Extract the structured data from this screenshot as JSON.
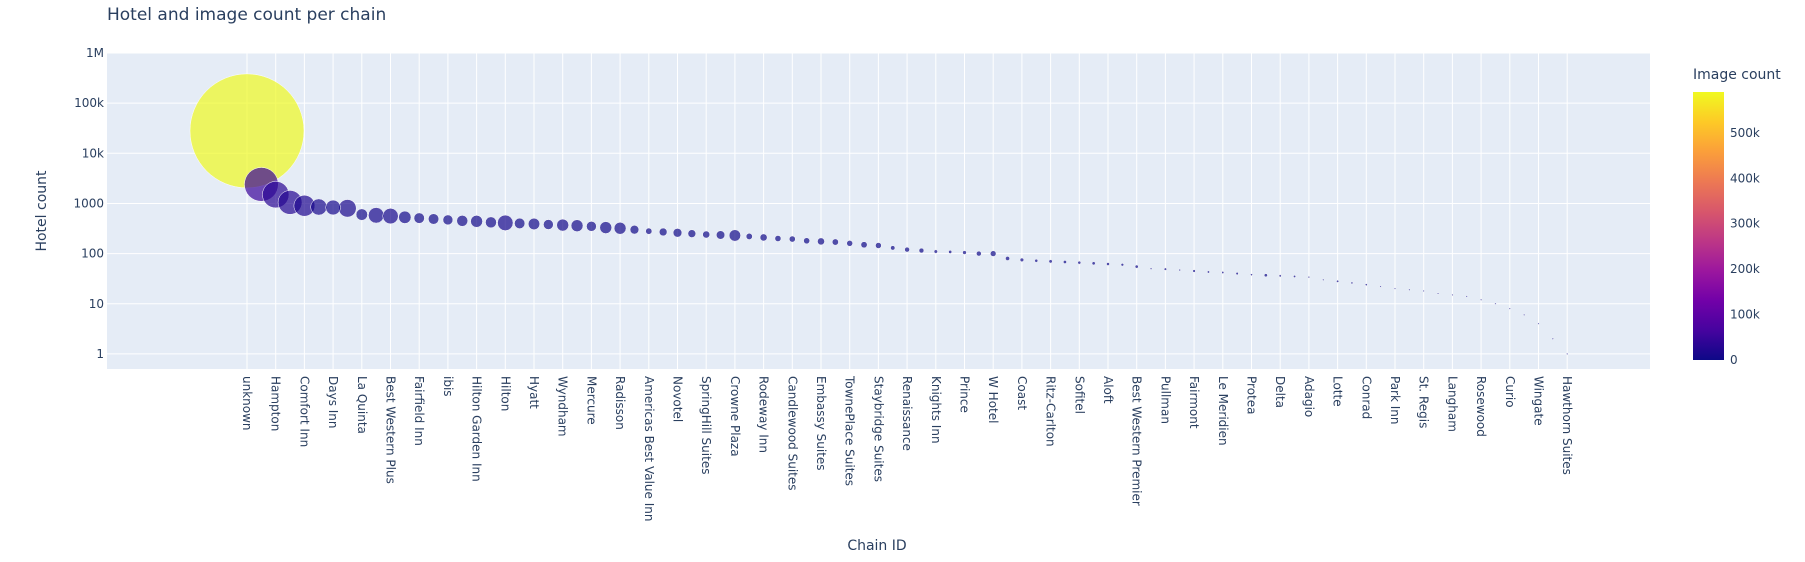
{
  "chart_data": {
    "type": "scatter",
    "title": "Hotel and image count per chain",
    "xlabel": "Chain ID",
    "ylabel": "Hotel count",
    "y_scale": "log",
    "ylim": [
      0.5,
      1000000
    ],
    "y_ticks": [
      {
        "value": 1,
        "label": "1"
      },
      {
        "value": 10,
        "label": "10"
      },
      {
        "value": 100,
        "label": "100"
      },
      {
        "value": 1000,
        "label": "1000"
      },
      {
        "value": 10000,
        "label": "10k"
      },
      {
        "value": 100000,
        "label": "100k"
      },
      {
        "value": 1000000,
        "label": "1M"
      }
    ],
    "size_by": "Image count",
    "color_by": "Image count",
    "colorbar": {
      "title": "Image count",
      "ticks": [
        {
          "value": 0,
          "label": "0"
        },
        {
          "value": 100000,
          "label": "100k"
        },
        {
          "value": 200000,
          "label": "200k"
        },
        {
          "value": 300000,
          "label": "300k"
        },
        {
          "value": 400000,
          "label": "400k"
        },
        {
          "value": 500000,
          "label": "500k"
        }
      ],
      "range": [
        0,
        590000
      ],
      "colors": [
        "#0d0887",
        "#46039f",
        "#7201a8",
        "#9c179e",
        "#bd3786",
        "#d8576b",
        "#ed7953",
        "#fb9f3a",
        "#fdca26",
        "#f0f921"
      ]
    },
    "grid": true,
    "legend": "none",
    "categories": [
      "unknown",
      "Hampton",
      "Comfort Inn",
      "Days Inn",
      "La Quinta",
      "Best Western Plus",
      "Fairfield Inn",
      "ibis",
      "Hilton Garden Inn",
      "Hilton",
      "Hyatt",
      "Wyndham",
      "Mercure",
      "Radisson",
      "Americas Best Value Inn",
      "Novotel",
      "SpringHill Suites",
      "Crowne Plaza",
      "Rodeway Inn",
      "Candlewood Suites",
      "Embassy Suites",
      "TownePlace Suites",
      "Staybridge Suites",
      "Renaissance",
      "Knights Inn",
      "Prince",
      "W Hotel",
      "Coast",
      "Ritz-Carlton",
      "Sofitel",
      "Aloft",
      "Best Western Premier",
      "Pullman",
      "Fairmont",
      "Le Meridien",
      "Protea",
      "Delta",
      "Adagio",
      "Lotte",
      "Conrad",
      "Park Inn",
      "St. Regis",
      "Langham",
      "Rosewood",
      "Curio",
      "Wingate",
      "Hawthorn Suites"
    ],
    "points": [
      {
        "label": "unknown",
        "hotels": 28000,
        "images": 590000
      },
      {
        "hotels": 2400,
        "images": 52000
      },
      {
        "label": "Hampton",
        "hotels": 1500,
        "images": 32000
      },
      {
        "hotels": 1050,
        "images": 26000
      },
      {
        "label": "Comfort Inn",
        "hotels": 900,
        "images": 20000
      },
      {
        "hotels": 850,
        "images": 12000
      },
      {
        "label": "Days Inn",
        "hotels": 830,
        "images": 10000
      },
      {
        "hotels": 800,
        "images": 14000
      },
      {
        "label": "La Quinta",
        "hotels": 600,
        "images": 6000
      },
      {
        "hotels": 580,
        "images": 11000
      },
      {
        "label": "Best Western Plus",
        "hotels": 560,
        "images": 11000
      },
      {
        "hotels": 530,
        "images": 7000
      },
      {
        "label": "Fairfield Inn",
        "hotels": 510,
        "images": 5000
      },
      {
        "hotels": 490,
        "images": 5000
      },
      {
        "label": "ibis",
        "hotels": 470,
        "images": 4500
      },
      {
        "hotels": 450,
        "images": 5500
      },
      {
        "label": "Hilton Garden Inn",
        "hotels": 440,
        "images": 6500
      },
      {
        "hotels": 420,
        "images": 5500
      },
      {
        "label": "Hilton",
        "hotels": 410,
        "images": 11000
      },
      {
        "hotels": 400,
        "images": 5000
      },
      {
        "label": "Hyatt",
        "hotels": 390,
        "images": 6000
      },
      {
        "hotels": 380,
        "images": 4500
      },
      {
        "label": "Wyndham",
        "hotels": 370,
        "images": 6500
      },
      {
        "hotels": 360,
        "images": 6500
      },
      {
        "label": "Mercure",
        "hotels": 350,
        "images": 4500
      },
      {
        "hotels": 330,
        "images": 6500
      },
      {
        "label": "Radisson",
        "hotels": 320,
        "images": 6500
      },
      {
        "hotels": 300,
        "images": 3500
      },
      {
        "label": "Americas Best Value Inn",
        "hotels": 280,
        "images": 1800
      },
      {
        "hotels": 270,
        "images": 2800
      },
      {
        "label": "Novotel",
        "hotels": 260,
        "images": 3500
      },
      {
        "hotels": 250,
        "images": 2800
      },
      {
        "label": "SpringHill Suites",
        "hotels": 240,
        "images": 2300
      },
      {
        "hotels": 235,
        "images": 3300
      },
      {
        "label": "Crowne Plaza",
        "hotels": 230,
        "images": 6000
      },
      {
        "hotels": 220,
        "images": 1800
      },
      {
        "label": "Rodeway Inn",
        "hotels": 210,
        "images": 2300
      },
      {
        "hotels": 200,
        "images": 1700
      },
      {
        "label": "Candlewood Suites",
        "hotels": 195,
        "images": 1700
      },
      {
        "hotels": 180,
        "images": 1700
      },
      {
        "label": "Embassy Suites",
        "hotels": 175,
        "images": 2300
      },
      {
        "hotels": 170,
        "images": 1800
      },
      {
        "label": "TownePlace Suites",
        "hotels": 160,
        "images": 1600
      },
      {
        "hotels": 150,
        "images": 1800
      },
      {
        "label": "Staybridge Suites",
        "hotels": 145,
        "images": 1600
      },
      {
        "hotels": 130,
        "images": 900
      },
      {
        "label": "Renaissance",
        "hotels": 120,
        "images": 1100
      },
      {
        "hotels": 115,
        "images": 1100
      },
      {
        "label": "Knights Inn",
        "hotels": 110,
        "images": 600
      },
      {
        "hotels": 108,
        "images": 500
      },
      {
        "label": "Prince",
        "hotels": 105,
        "images": 700
      },
      {
        "hotels": 100,
        "images": 1100
      },
      {
        "label": "W Hotel",
        "hotels": 100,
        "images": 1500
      },
      {
        "hotels": 80,
        "images": 800
      },
      {
        "label": "Coast",
        "hotels": 75,
        "images": 650
      },
      {
        "hotels": 72,
        "images": 450
      },
      {
        "label": "Ritz-Carlton",
        "hotels": 70,
        "images": 550
      },
      {
        "hotels": 68,
        "images": 500
      },
      {
        "label": "Sofitel",
        "hotels": 66,
        "images": 450
      },
      {
        "hotels": 64,
        "images": 500
      },
      {
        "label": "Aloft",
        "hotels": 62,
        "images": 450
      },
      {
        "hotels": 60,
        "images": 350
      },
      {
        "label": "Best Western Premier",
        "hotels": 55,
        "images": 500
      },
      {
        "hotels": 50,
        "images": 150
      },
      {
        "label": "Pullman",
        "hotels": 49,
        "images": 300
      },
      {
        "hotels": 47,
        "images": 150
      },
      {
        "label": "Fairmont",
        "hotels": 45,
        "images": 350
      },
      {
        "hotels": 43,
        "images": 250
      },
      {
        "label": "Le Meridien",
        "hotels": 42,
        "images": 250
      },
      {
        "hotels": 40,
        "images": 300
      },
      {
        "label": "Protea",
        "hotels": 38,
        "images": 200
      },
      {
        "hotels": 37,
        "images": 500
      },
      {
        "label": "Delta",
        "hotels": 36,
        "images": 250
      },
      {
        "hotels": 35,
        "images": 250
      },
      {
        "label": "Adagio",
        "hotels": 34,
        "images": 150
      },
      {
        "hotels": 30,
        "images": 60
      },
      {
        "label": "Lotte",
        "hotels": 28,
        "images": 250
      },
      {
        "hotels": 26,
        "images": 200
      },
      {
        "label": "Conrad",
        "hotels": 24,
        "images": 200
      },
      {
        "hotels": 22,
        "images": 100
      },
      {
        "label": "Park Inn",
        "hotels": 20,
        "images": 40
      },
      {
        "hotels": 19,
        "images": 40
      },
      {
        "label": "St. Regis",
        "hotels": 18,
        "images": 100
      },
      {
        "hotels": 16,
        "images": 40
      },
      {
        "label": "Langham",
        "hotels": 15,
        "images": 60
      },
      {
        "hotels": 14,
        "images": 60
      },
      {
        "label": "Rosewood",
        "hotels": 12,
        "images": 60
      },
      {
        "hotels": 10,
        "images": 40
      },
      {
        "label": "Curio",
        "hotels": 8,
        "images": 15
      },
      {
        "hotels": 6,
        "images": 8
      },
      {
        "label": "Wingate",
        "hotels": 4,
        "images": 5
      },
      {
        "hotels": 2,
        "images": 3
      },
      {
        "label": "Hawthorn Suites",
        "hotels": 1,
        "images": 2
      }
    ]
  }
}
